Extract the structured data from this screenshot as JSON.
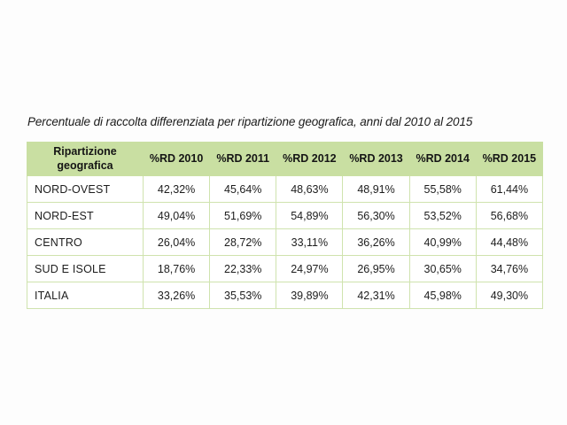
{
  "chart_data": {
    "type": "table",
    "title": "Percentuale di raccolta differenziata per ripartizione geografica, anni dal 2010 al 2015",
    "columns": [
      "Ripartizione geografica",
      "%RD 2010",
      "%RD 2011",
      "%RD 2012",
      "%RD 2013",
      "%RD 2014",
      "%RD 2015"
    ],
    "rows": [
      {
        "label": "NORD-OVEST",
        "values": [
          "42,32%",
          "45,64%",
          "48,63%",
          "48,91%",
          "55,58%",
          "61,44%"
        ]
      },
      {
        "label": "NORD-EST",
        "values": [
          "49,04%",
          "51,69%",
          "54,89%",
          "56,30%",
          "53,52%",
          "56,68%"
        ]
      },
      {
        "label": "CENTRO",
        "values": [
          "26,04%",
          "28,72%",
          "33,11%",
          "36,26%",
          "40,99%",
          "44,48%"
        ]
      },
      {
        "label": "SUD E ISOLE",
        "values": [
          "18,76%",
          "22,33%",
          "24,97%",
          "26,95%",
          "30,65%",
          "34,76%"
        ]
      },
      {
        "label": "ITALIA",
        "values": [
          "33,26%",
          "35,53%",
          "39,89%",
          "42,31%",
          "45,98%",
          "49,30%"
        ]
      }
    ],
    "layout": {
      "header_background": "green band, no internal separators",
      "grid": "on",
      "value_format": "percent, comma decimal"
    }
  },
  "colors": {
    "header_bg": "#c9dfa2",
    "grid_border": "#cfe3ae",
    "text": "#1d1d1d",
    "page_bg": "#fdfdfd"
  }
}
